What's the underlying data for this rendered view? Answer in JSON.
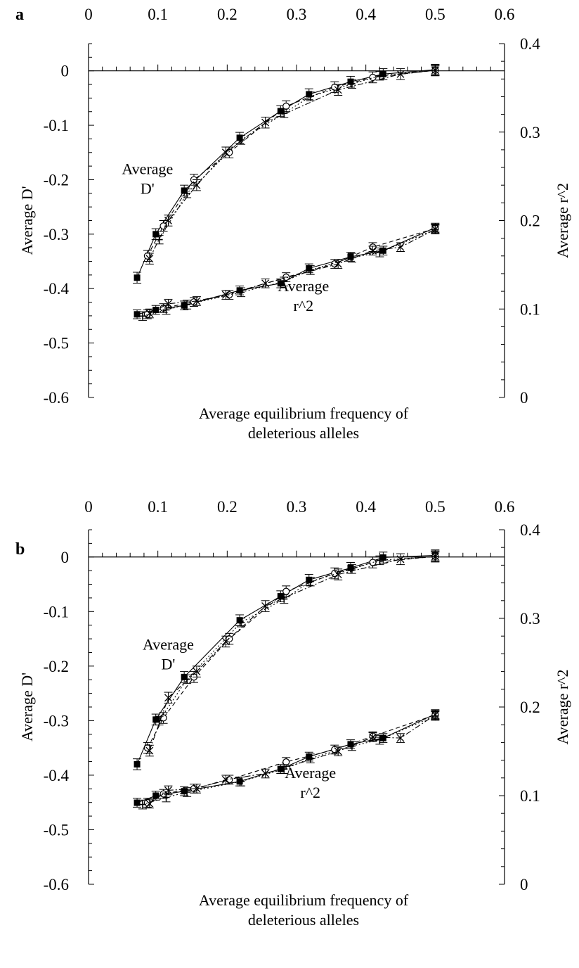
{
  "chart_data": [
    {
      "type": "line",
      "panel_label": "a",
      "xlabel": "Average equilibrium frequency of\ndeleterious alleles",
      "ylabel_left": "Average D'",
      "ylabel_right": "Average r^2",
      "x_ticks": [
        0,
        0.1,
        0.2,
        0.3,
        0.4,
        0.5,
        0.6
      ],
      "xlim": [
        0,
        0.6
      ],
      "ylim_left": [
        -0.6,
        0.05
      ],
      "y_ticks_left": [
        -0.6,
        -0.5,
        -0.4,
        -0.3,
        -0.2,
        -0.1,
        0
      ],
      "ylim_right": [
        0,
        0.4
      ],
      "y_ticks_right": [
        0,
        0.1,
        0.2,
        0.3,
        0.4
      ],
      "annotations": [
        {
          "text": "Average\nD'",
          "x": 0.085,
          "y": -0.19,
          "axis": "left"
        },
        {
          "text": "Average\nr^2",
          "x": 0.31,
          "y": 0.12,
          "axis": "right"
        }
      ],
      "series": [
        {
          "group": "D'",
          "axis": "left",
          "marker": "square-filled",
          "dash": "solid",
          "error": 0.01,
          "x": [
            0.07,
            0.097,
            0.138,
            0.218,
            0.277,
            0.318,
            0.378,
            0.425,
            0.5
          ],
          "y": [
            -0.38,
            -0.3,
            -0.22,
            -0.123,
            -0.074,
            -0.043,
            -0.02,
            -0.006,
            0.002
          ]
        },
        {
          "group": "D'",
          "axis": "left",
          "marker": "circle-open",
          "dash": "dash",
          "error": 0.01,
          "x": [
            0.085,
            0.108,
            0.152,
            0.203,
            0.285,
            0.355,
            0.41,
            0.5
          ],
          "y": [
            -0.34,
            -0.285,
            -0.2,
            -0.15,
            -0.065,
            -0.03,
            -0.012,
            0.001
          ]
        },
        {
          "group": "D'",
          "axis": "left",
          "marker": "cross",
          "dash": "dashdot",
          "error": 0.01,
          "x": [
            0.088,
            0.115,
            0.156,
            0.198,
            0.255,
            0.36,
            0.45,
            0.5
          ],
          "y": [
            -0.345,
            -0.275,
            -0.21,
            -0.15,
            -0.095,
            -0.035,
            -0.006,
            0.001
          ]
        },
        {
          "group": "D'",
          "axis": "left",
          "marker": "plus",
          "dash": "dot",
          "error": 0.008,
          "x": [
            0.102,
            0.142,
            0.22,
            0.282,
            0.32,
            0.38,
            0.42,
            0.5
          ],
          "y": [
            -0.31,
            -0.225,
            -0.127,
            -0.078,
            -0.047,
            -0.024,
            -0.009,
            0.001
          ]
        },
        {
          "group": "r^2",
          "axis": "right",
          "marker": "square-filled",
          "dash": "solid",
          "error": 0.005,
          "x": [
            0.07,
            0.097,
            0.138,
            0.218,
            0.277,
            0.318,
            0.378,
            0.425,
            0.5
          ],
          "y": [
            0.094,
            0.099,
            0.104,
            0.121,
            0.129,
            0.146,
            0.159,
            0.166,
            0.192
          ]
        },
        {
          "group": "r^2",
          "axis": "right",
          "marker": "circle-open",
          "dash": "dash",
          "error": 0.005,
          "x": [
            0.085,
            0.108,
            0.152,
            0.203,
            0.285,
            0.355,
            0.41,
            0.5
          ],
          "y": [
            0.094,
            0.101,
            0.108,
            0.116,
            0.136,
            0.151,
            0.17,
            0.191
          ]
        },
        {
          "group": "r^2",
          "axis": "right",
          "marker": "cross",
          "dash": "dashdot",
          "error": 0.005,
          "x": [
            0.088,
            0.115,
            0.156,
            0.198,
            0.255,
            0.36,
            0.41,
            0.45,
            0.5
          ],
          "y": [
            0.095,
            0.106,
            0.109,
            0.116,
            0.129,
            0.151,
            0.166,
            0.17,
            0.19
          ]
        },
        {
          "group": "r^2",
          "axis": "right",
          "marker": "plus",
          "dash": "dot",
          "error": 0.005,
          "x": [
            0.078,
            0.112,
            0.142,
            0.22,
            0.282,
            0.32,
            0.38,
            0.42,
            0.5
          ],
          "y": [
            0.092,
            0.099,
            0.105,
            0.119,
            0.131,
            0.144,
            0.158,
            0.164,
            0.19
          ]
        }
      ]
    },
    {
      "type": "line",
      "panel_label": "b",
      "xlabel": "Average equilibrium frequency of\ndeleterious alleles",
      "ylabel_left": "Average D'",
      "ylabel_right": "Average r^2",
      "x_ticks": [
        0,
        0.1,
        0.2,
        0.3,
        0.4,
        0.5,
        0.6
      ],
      "xlim": [
        0,
        0.6
      ],
      "ylim_left": [
        -0.6,
        0.05
      ],
      "y_ticks_left": [
        -0.6,
        -0.5,
        -0.4,
        -0.3,
        -0.2,
        -0.1,
        0
      ],
      "ylim_right": [
        0,
        0.4
      ],
      "y_ticks_right": [
        0,
        0.1,
        0.2,
        0.3,
        0.4
      ],
      "annotations": [
        {
          "text": "Average\nD'",
          "x": 0.115,
          "y": -0.17,
          "axis": "left"
        },
        {
          "text": "Average\nr^2",
          "x": 0.32,
          "y": 0.12,
          "axis": "right"
        }
      ],
      "series": [
        {
          "group": "D'",
          "axis": "left",
          "marker": "square-filled",
          "dash": "solid",
          "error": 0.01,
          "x": [
            0.07,
            0.097,
            0.138,
            0.218,
            0.277,
            0.318,
            0.378,
            0.425,
            0.5
          ],
          "y": [
            -0.38,
            -0.298,
            -0.22,
            -0.116,
            -0.072,
            -0.042,
            -0.02,
            -0.001,
            0.003
          ]
        },
        {
          "group": "D'",
          "axis": "left",
          "marker": "circle-open",
          "dash": "dash",
          "error": 0.01,
          "x": [
            0.085,
            0.108,
            0.152,
            0.203,
            0.285,
            0.355,
            0.41,
            0.5
          ],
          "y": [
            -0.35,
            -0.295,
            -0.22,
            -0.15,
            -0.063,
            -0.03,
            -0.01,
            0.001
          ]
        },
        {
          "group": "D'",
          "axis": "left",
          "marker": "cross",
          "dash": "dashdot",
          "error": 0.01,
          "x": [
            0.088,
            0.115,
            0.156,
            0.198,
            0.255,
            0.36,
            0.45,
            0.5
          ],
          "y": [
            -0.355,
            -0.258,
            -0.21,
            -0.155,
            -0.09,
            -0.032,
            -0.004,
            0.001
          ]
        },
        {
          "group": "D'",
          "axis": "left",
          "marker": "plus",
          "dash": "dot",
          "error": 0.008,
          "x": [
            0.102,
            0.142,
            0.22,
            0.282,
            0.32,
            0.38,
            0.42,
            0.5
          ],
          "y": [
            -0.3,
            -0.224,
            -0.12,
            -0.077,
            -0.045,
            -0.022,
            -0.006,
            0.001
          ]
        },
        {
          "group": "r^2",
          "axis": "right",
          "marker": "square-filled",
          "dash": "solid",
          "error": 0.005,
          "x": [
            0.07,
            0.097,
            0.138,
            0.218,
            0.277,
            0.318,
            0.378,
            0.425,
            0.5
          ],
          "y": [
            0.092,
            0.1,
            0.105,
            0.116,
            0.13,
            0.144,
            0.158,
            0.165,
            0.192
          ]
        },
        {
          "group": "r^2",
          "axis": "right",
          "marker": "circle-open",
          "dash": "dash",
          "error": 0.005,
          "x": [
            0.085,
            0.108,
            0.152,
            0.203,
            0.285,
            0.355,
            0.41,
            0.5
          ],
          "y": [
            0.092,
            0.102,
            0.108,
            0.118,
            0.138,
            0.152,
            0.167,
            0.191
          ]
        },
        {
          "group": "r^2",
          "axis": "right",
          "marker": "cross",
          "dash": "dashdot",
          "error": 0.005,
          "x": [
            0.088,
            0.115,
            0.156,
            0.198,
            0.255,
            0.36,
            0.41,
            0.45,
            0.5
          ],
          "y": [
            0.091,
            0.106,
            0.108,
            0.118,
            0.125,
            0.15,
            0.166,
            0.165,
            0.191
          ]
        },
        {
          "group": "r^2",
          "axis": "right",
          "marker": "plus",
          "dash": "dot",
          "error": 0.005,
          "x": [
            0.078,
            0.112,
            0.142,
            0.22,
            0.282,
            0.32,
            0.38,
            0.42,
            0.5
          ],
          "y": [
            0.09,
            0.098,
            0.104,
            0.116,
            0.13,
            0.142,
            0.156,
            0.163,
            0.19
          ]
        }
      ]
    }
  ]
}
